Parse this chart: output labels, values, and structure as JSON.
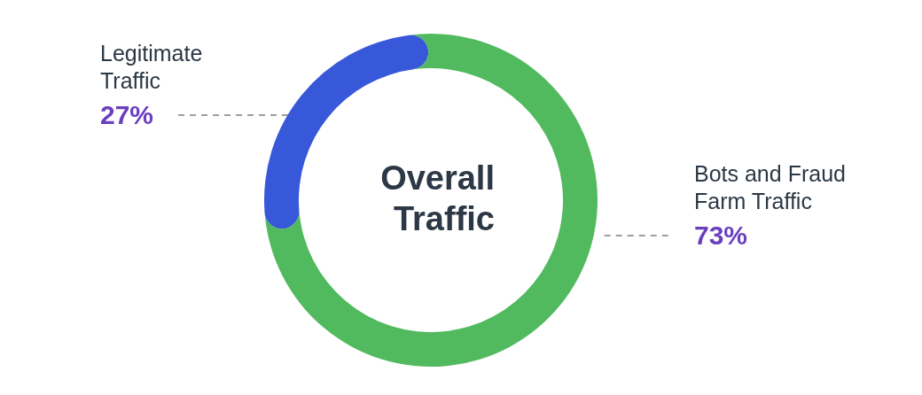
{
  "chart_data": {
    "type": "donut",
    "title": "Overall Traffic",
    "categories": [
      "Legitimate Traffic",
      "Bots and Fraud Farm Traffic"
    ],
    "values": [
      27,
      73
    ],
    "colors": [
      "#3858da",
      "#52ba5e"
    ],
    "value_labels": [
      "27%",
      "73%"
    ]
  }
}
